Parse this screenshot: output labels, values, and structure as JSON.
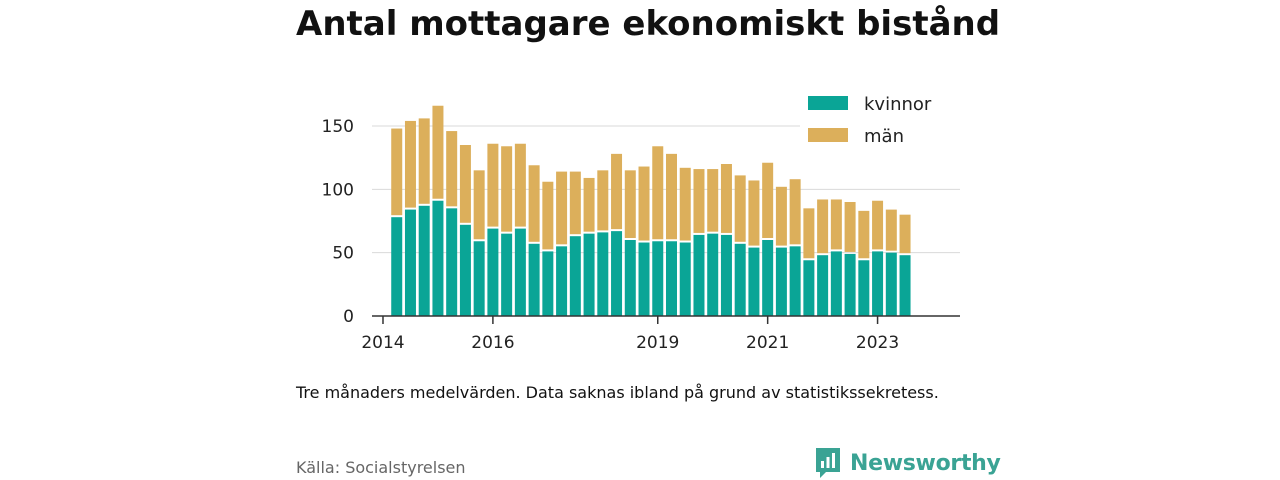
{
  "title": "Antal mottagare ekonomiskt bistånd",
  "note": "Tre månaders medelvärden. Data saknas ibland på grund av statistikssekretess.",
  "source": "Källa: Socialstyrelsen",
  "brand": {
    "name": "Newsworthy",
    "icon": "bar-chart-speech-bubble-icon",
    "color": "#3aa394"
  },
  "colors": {
    "kvinnor": "#0aa596",
    "man": "#dcaf5b",
    "grid": "#d9d9d9",
    "axis": "#333333"
  },
  "chart_data": {
    "type": "bar",
    "stacked": true,
    "title": "Antal mottagare ekonomiskt bistånd",
    "xlabel": "",
    "ylabel": "",
    "ylim": [
      0,
      170
    ],
    "yticks": [
      0,
      50,
      100,
      150
    ],
    "xlim": [
      2013.8,
      2024.5
    ],
    "xticks": [
      2014,
      2016,
      2019,
      2021,
      2023
    ],
    "grid": true,
    "legend_position": "top-right",
    "x": [
      2014.25,
      2014.5,
      2014.75,
      2015.0,
      2015.25,
      2015.5,
      2015.75,
      2016.0,
      2016.25,
      2016.5,
      2016.75,
      2017.0,
      2017.25,
      2017.5,
      2017.75,
      2018.0,
      2018.25,
      2018.5,
      2018.75,
      2019.0,
      2019.25,
      2019.5,
      2019.75,
      2020.0,
      2020.25,
      2020.5,
      2020.75,
      2021.0,
      2021.25,
      2021.5,
      2021.75,
      2022.0,
      2022.25,
      2022.5,
      2022.75,
      2023.0,
      2023.25,
      2023.5
    ],
    "series": [
      {
        "name": "kvinnor",
        "values": [
          78,
          84,
          87,
          91,
          85,
          72,
          59,
          69,
          65,
          69,
          57,
          51,
          55,
          63,
          65,
          66,
          67,
          60,
          58,
          59,
          59,
          58,
          64,
          65,
          64,
          57,
          54,
          60,
          54,
          55,
          44,
          48,
          51,
          49,
          44,
          51,
          50,
          48
        ]
      },
      {
        "name": "män",
        "values": [
          70,
          70,
          69,
          75,
          61,
          63,
          56,
          67,
          69,
          67,
          62,
          55,
          59,
          51,
          44,
          49,
          61,
          55,
          60,
          75,
          69,
          59,
          52,
          51,
          56,
          54,
          53,
          61,
          48,
          53,
          41,
          44,
          41,
          41,
          39,
          40,
          34,
          32
        ]
      }
    ]
  }
}
